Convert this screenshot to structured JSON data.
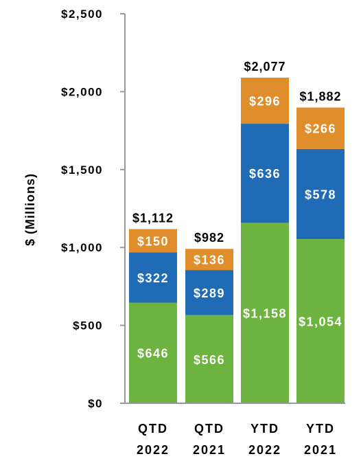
{
  "chart_data": {
    "type": "bar",
    "stacked": true,
    "ylabel": "$ (Millions)",
    "ylim": [
      0,
      2500
    ],
    "yticks": [
      0,
      500,
      1000,
      1500,
      2000,
      2500
    ],
    "ytick_labels": [
      "$0",
      "$500",
      "$1,000",
      "$1,500",
      "$2,000",
      "$2,500"
    ],
    "categories": [
      [
        "QTD",
        "2022"
      ],
      [
        "QTD",
        "2021"
      ],
      [
        "YTD",
        "2022"
      ],
      [
        "YTD",
        "2021"
      ]
    ],
    "series": [
      {
        "values": [
          646,
          566,
          1158,
          1054
        ],
        "labels": [
          "$646",
          "$566",
          "$1,158",
          "$1,054"
        ],
        "color": "#6db33f"
      },
      {
        "values": [
          322,
          289,
          636,
          578
        ],
        "labels": [
          "$322",
          "$289",
          "$636",
          "$578"
        ],
        "color": "#1f6bb5"
      },
      {
        "values": [
          150,
          136,
          296,
          266
        ],
        "labels": [
          "$150",
          "$136",
          "$296",
          "$266"
        ],
        "color": "#e08e2b"
      }
    ],
    "totals": [
      "$1,112",
      "$982",
      "$2,077",
      "$1,882"
    ],
    "grid": false,
    "legend": "none",
    "axis_color": "#999999"
  }
}
